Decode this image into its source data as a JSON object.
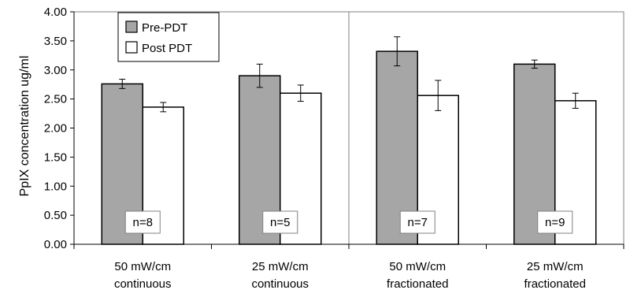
{
  "chart_data": {
    "type": "bar",
    "title": "",
    "xlabel": "",
    "ylabel": "PpIX concentration ug/ml",
    "ylim": [
      0,
      4
    ],
    "yticks": [
      "0.00",
      "0.50",
      "1.00",
      "1.50",
      "2.00",
      "2.50",
      "3.00",
      "3.50",
      "4.00"
    ],
    "categories": [
      [
        "50 mW/cm",
        "continuous"
      ],
      [
        "25 mW/cm",
        "continuous"
      ],
      [
        "50 mW/cm",
        "fractionated"
      ],
      [
        "25 mW/cm",
        "fractionated"
      ]
    ],
    "series": [
      {
        "name": "Pre-PDT",
        "color": "#a6a6a6",
        "values": [
          2.76,
          2.9,
          3.32,
          3.1
        ],
        "errors": [
          0.08,
          0.2,
          0.25,
          0.07
        ]
      },
      {
        "name": "Post PDT",
        "color": "#ffffff",
        "values": [
          2.36,
          2.6,
          2.56,
          2.47
        ],
        "errors": [
          0.08,
          0.14,
          0.26,
          0.13
        ]
      }
    ],
    "n_labels": [
      "n=8",
      "n=5",
      "n=7",
      "n=9"
    ],
    "legend": "top-left",
    "grid": false,
    "group_divider_after_index": 1
  }
}
